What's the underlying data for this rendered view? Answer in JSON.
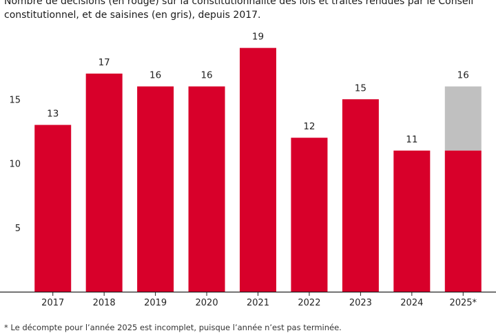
{
  "subtitle": "Nombre de décisions (en rouge) sur la constitutionnalité des lois et traités rendues par le Conseil constitutionnel, et de saisines (en gris), depuis 2017.",
  "footnote": "* Le décompte pour l’année 2025 est incomplet, puisque l’année n’est pas terminée.",
  "colors": {
    "decisions": "#d8002a",
    "saisines": "#c0c0c0",
    "axis": "#222222",
    "grid": "#d0d0d0"
  },
  "chart_data": {
    "type": "bar",
    "title": "",
    "xlabel": "",
    "ylabel": "",
    "ylim": [
      0,
      20
    ],
    "yticks": [
      5,
      10,
      15
    ],
    "grid": false,
    "categories": [
      "2017",
      "2018",
      "2019",
      "2020",
      "2021",
      "2022",
      "2023",
      "2024",
      "2025*"
    ],
    "series": [
      {
        "name": "décisions",
        "values": [
          13,
          17,
          16,
          16,
          19,
          12,
          15,
          11,
          11
        ]
      },
      {
        "name": "saisines",
        "values": [
          13,
          17,
          16,
          16,
          19,
          12,
          15,
          11,
          16
        ]
      }
    ],
    "data_labels": [
      "13",
      "17",
      "16",
      "16",
      "19",
      "12",
      "15",
      "11",
      "16"
    ]
  }
}
